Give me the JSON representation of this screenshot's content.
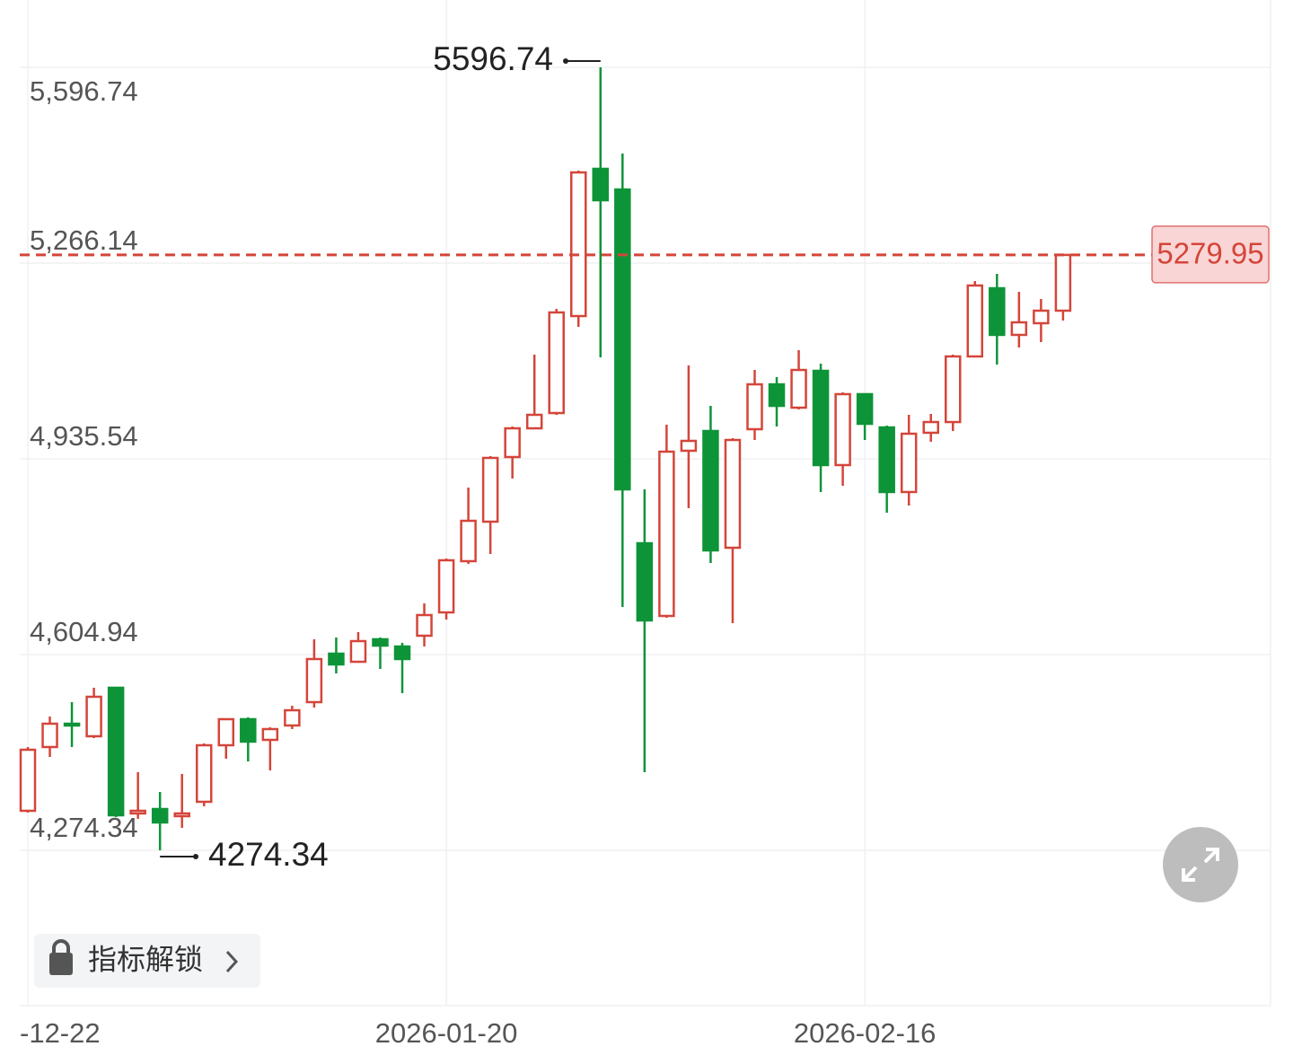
{
  "chart_data": {
    "type": "candlestick",
    "categories": [
      "-12-22",
      null,
      null,
      null,
      null,
      null,
      null,
      null,
      null,
      null,
      null,
      null,
      null,
      null,
      null,
      null,
      null,
      null,
      null,
      "2026-01-20",
      null,
      null,
      null,
      null,
      null,
      null,
      null,
      null,
      null,
      null,
      null,
      null,
      null,
      null,
      null,
      null,
      null,
      null,
      "2026-02-16",
      null,
      null,
      null,
      null,
      null,
      null,
      null,
      null,
      null
    ],
    "open": [
      4341.1,
      4448.8,
      4488.2,
      4467.0,
      4548.9,
      4336.6,
      4344.1,
      4332.0,
      4356.3,
      4451.8,
      4495.8,
      4460.9,
      4485.2,
      4524.6,
      4606.5,
      4592.8,
      4630.8,
      4618.6,
      4636.8,
      4676.2,
      4762.7,
      4829.4,
      4938.6,
      4987.1,
      5012.9,
      5176.7,
      5425.4,
      5390.5,
      4793.0,
      4670.2,
      4949.2,
      4982.6,
      4785.4,
      4985.6,
      5061.4,
      5022.0,
      5084.2,
      4925.0,
      5044.8,
      4988.6,
      4879.5,
      4979.6,
      4997.7,
      5108.5,
      5223.7,
      5144.9,
      5164.6,
      5185.8
    ],
    "high": [
      4448.8,
      4500.3,
      4524.6,
      4548.9,
      4548.9,
      4406.3,
      4372.9,
      4403.3,
      4454.8,
      4497.3,
      4498.8,
      4482.1,
      4518.5,
      4630.8,
      4633.8,
      4642.9,
      4633.8,
      4624.7,
      4691.4,
      4767.2,
      4887.0,
      4940.1,
      4990.2,
      5111.5,
      5188.8,
      5422.4,
      5596.74,
      5451.2,
      4884.0,
      4993.2,
      5093.3,
      5025.0,
      4970.4,
      5085.7,
      5073.6,
      5119.1,
      5096.3,
      5047.8,
      5044.8,
      4991.7,
      5009.9,
      5011.4,
      5111.5,
      5235.8,
      5248.0,
      5217.6,
      5205.5,
      5279.95
    ],
    "low": [
      4338.1,
      4432.1,
      4448.8,
      4463.9,
      4330.5,
      4327.5,
      4274.34,
      4312.3,
      4348.7,
      4429.1,
      4424.5,
      4409.3,
      4479.1,
      4515.5,
      4573.1,
      4591.3,
      4580.7,
      4539.8,
      4618.6,
      4664.1,
      4758.1,
      4774.8,
      4902.2,
      4985.6,
      5009.9,
      5158.5,
      5106.9,
      4685.3,
      4406.3,
      4667.1,
      4852.2,
      4759.7,
      4658.0,
      4967.4,
      4990.2,
      5019.0,
      4879.5,
      4890.1,
      4967.4,
      4844.6,
      4856.7,
      4964.4,
      4982.6,
      5106.9,
      5094.8,
      5123.6,
      5132.7,
      5169.1
    ],
    "close": [
      4444.2,
      4488.2,
      4485.2,
      4533.7,
      4333.5,
      4341.1,
      4321.4,
      4336.6,
      4451.8,
      4495.8,
      4457.9,
      4479.1,
      4510.9,
      4597.4,
      4588.3,
      4627.7,
      4620.1,
      4597.4,
      4671.7,
      4764.2,
      4830.9,
      4937.1,
      4987.1,
      5009.9,
      5182.8,
      5419.3,
      5372.3,
      4884.0,
      4662.6,
      4947.7,
      4965.9,
      4780.9,
      4967.4,
      5061.4,
      5025.0,
      5085.7,
      4925.0,
      5044.8,
      4994.7,
      4879.5,
      4978.0,
      4997.7,
      5108.5,
      5228.3,
      5144.9,
      5166.1,
      5185.8,
      5279.95
    ],
    "up_color": "#d4453a",
    "down_color": "#0e9438",
    "ylim": [
      4012.0,
      5680.2
    ],
    "yticks": [
      {
        "value": 5596.74,
        "label": "5,596.74"
      },
      {
        "value": 5266.14,
        "label": "5,266.14"
      },
      {
        "value": 4935.54,
        "label": "4,935.54"
      },
      {
        "value": 4604.94,
        "label": "4,604.94"
      },
      {
        "value": 4274.34,
        "label": "4,274.34"
      }
    ],
    "grid": true,
    "high_label": "5596.74",
    "low_label": "4274.34",
    "last_label": "5279.95",
    "button_label": "指标解锁"
  }
}
